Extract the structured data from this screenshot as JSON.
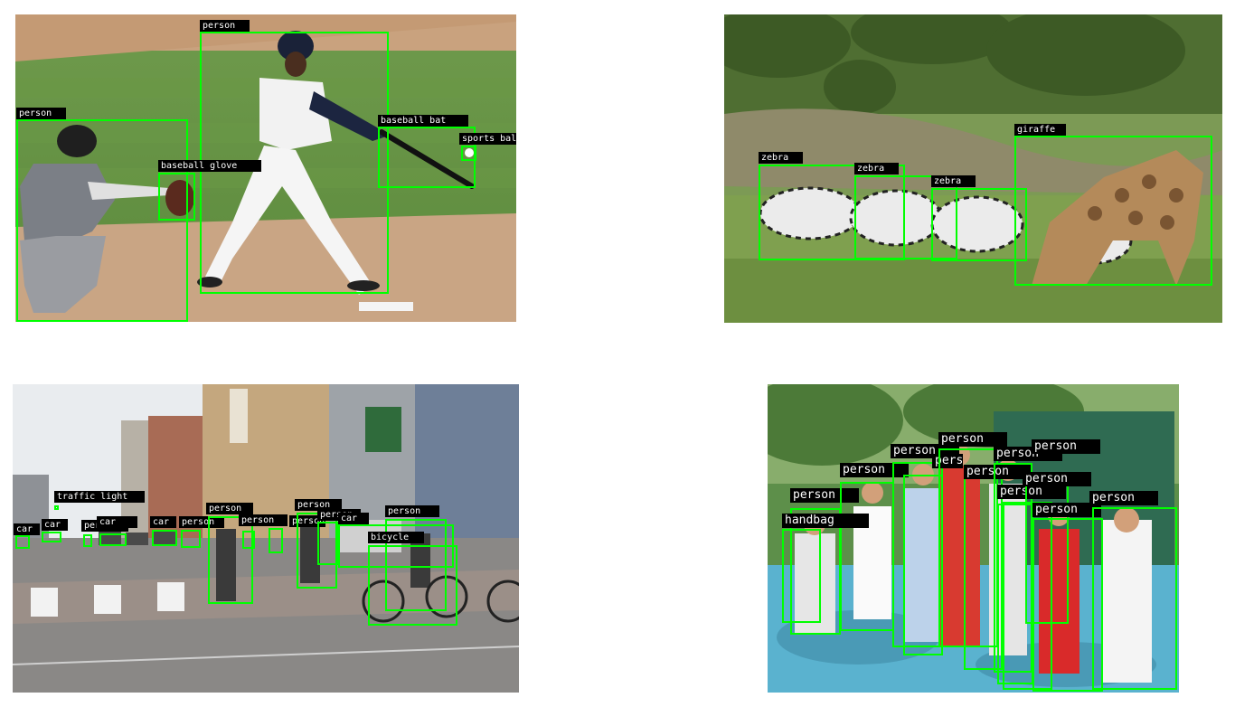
{
  "colors": {
    "box": "#00ff00",
    "label_bg": "#000000",
    "label_text": "#ffffff"
  },
  "panels": [
    {
      "name": "baseball-scene",
      "detections": [
        {
          "label": "person"
        },
        {
          "label": "person"
        },
        {
          "label": "baseball bat"
        },
        {
          "label": "sports ball"
        },
        {
          "label": "baseball glove"
        }
      ]
    },
    {
      "name": "zebra-giraffe-scene",
      "detections": [
        {
          "label": "giraffe"
        },
        {
          "label": "zebra"
        },
        {
          "label": "zebra"
        },
        {
          "label": "zebra"
        }
      ]
    },
    {
      "name": "street-scene",
      "detections": [
        {
          "label": "traffic light"
        },
        {
          "label": "car"
        },
        {
          "label": "car"
        },
        {
          "label": "person"
        },
        {
          "label": "car"
        },
        {
          "label": "car"
        },
        {
          "label": "person"
        },
        {
          "label": "person"
        },
        {
          "label": "person"
        },
        {
          "label": "person"
        },
        {
          "label": "person"
        },
        {
          "label": "person"
        },
        {
          "label": "car"
        },
        {
          "label": "person"
        },
        {
          "label": "bicycle"
        }
      ]
    },
    {
      "name": "tennis-group-scene",
      "detections": [
        {
          "label": "person"
        },
        {
          "label": "person"
        },
        {
          "label": "person"
        },
        {
          "label": "person"
        },
        {
          "label": "person"
        },
        {
          "label": "person"
        },
        {
          "label": "person"
        },
        {
          "label": "person"
        },
        {
          "label": "person"
        },
        {
          "label": "person"
        },
        {
          "label": "person"
        },
        {
          "label": "person"
        },
        {
          "label": "handbag"
        }
      ]
    }
  ]
}
